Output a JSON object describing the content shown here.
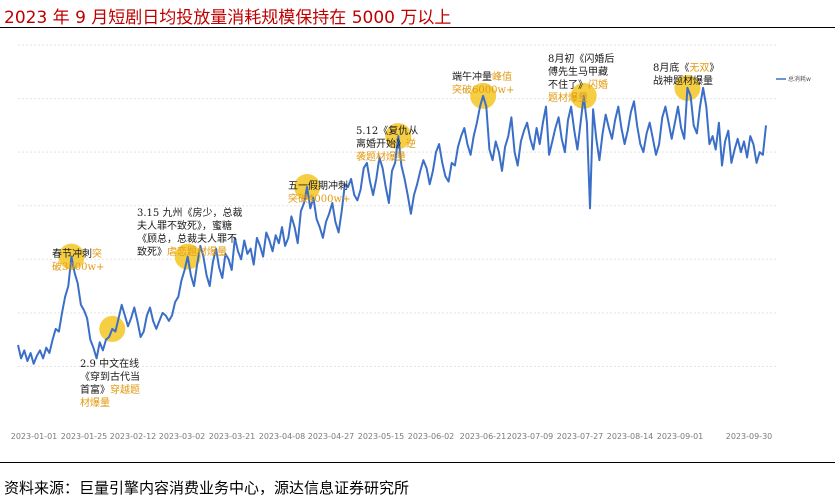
{
  "title": "2023 年 9 月短剧日均投放量消耗规模保持在 5000 万以上",
  "source": "资料来源：巨量引擎内容消费业务中心，源达信息证券研究所",
  "colors": {
    "title": "#c00000",
    "line": "#3b6fc7",
    "highlight": "#f3c623",
    "annotation": "#1a1a1a",
    "annotation_accent": "#e19a10"
  },
  "chart_data": {
    "type": "line",
    "legend": "总消耗w",
    "legend_position": "top-right",
    "grid": true,
    "ylim": [
      0,
      7000
    ],
    "x_ticks": [
      "2023-01-01",
      "2023-01-25",
      "2023-02-12",
      "2023-03-02",
      "2023-03-21",
      "2023-04-08",
      "2023-04-27",
      "2023-05-15",
      "2023-06-02",
      "2023-06-21",
      "2023-07-09",
      "2023-07-27",
      "2023-08-14",
      "2023-09-01",
      "2023-09-30"
    ],
    "series": [
      {
        "name": "总消耗w",
        "values": [
          1400,
          1150,
          1300,
          1100,
          1250,
          1050,
          1200,
          1300,
          1150,
          1350,
          1250,
          1500,
          1700,
          1650,
          2000,
          2300,
          2500,
          3050,
          2750,
          2550,
          2150,
          2050,
          1900,
          1500,
          1350,
          1150,
          1450,
          1300,
          1500,
          1550,
          1700,
          1650,
          1900,
          2150,
          1950,
          1750,
          1900,
          2100,
          1850,
          1550,
          1650,
          1950,
          2100,
          1850,
          1700,
          1850,
          2000,
          1950,
          1850,
          1950,
          2200,
          2300,
          2600,
          2800,
          3050,
          2700,
          2500,
          2900,
          3250,
          3050,
          2700,
          2500,
          2950,
          3200,
          2850,
          2650,
          3100,
          3000,
          2800,
          3400,
          3150,
          3000,
          3350,
          3100,
          3200,
          2900,
          3400,
          3250,
          3050,
          3500,
          3350,
          3150,
          3450,
          3300,
          3600,
          3250,
          3400,
          3800,
          3600,
          3300,
          3900,
          4050,
          4350,
          3950,
          4150,
          3750,
          3600,
          3400,
          3700,
          3850,
          4050,
          3700,
          3500,
          3900,
          4400,
          4350,
          4500,
          4200,
          4100,
          4300,
          4700,
          4800,
          4450,
          4200,
          4500,
          4900,
          4700,
          4350,
          4050,
          4650,
          4800,
          5300,
          4750,
          4500,
          4200,
          3850,
          4200,
          4400,
          4650,
          4850,
          4700,
          4400,
          4650,
          5000,
          5150,
          4800,
          4550,
          4450,
          4800,
          4750,
          5100,
          5300,
          5450,
          5150,
          4950,
          5300,
          5550,
          5850,
          6050,
          5850,
          5050,
          4850,
          5200,
          5000,
          4650,
          5100,
          5300,
          5650,
          5000,
          4750,
          5200,
          5400,
          5550,
          5250,
          5050,
          5450,
          5150,
          5550,
          5850,
          4950,
          5200,
          5450,
          5650,
          5250,
          5000,
          5600,
          5850,
          5400,
          5050,
          5550,
          6050,
          5550,
          3950,
          5800,
          5250,
          4850,
          5350,
          5700,
          5450,
          5250,
          5600,
          5850,
          5450,
          5150,
          5400,
          5750,
          5950,
          5500,
          5150,
          5000,
          5350,
          5550,
          5250,
          4950,
          5150,
          5650,
          5850,
          5550,
          5250,
          5550,
          5850,
          5450,
          5250,
          6200,
          6050,
          5500,
          5350,
          5850,
          6200,
          5850,
          5150,
          5300,
          5050,
          5550,
          4750,
          5200,
          5400,
          4800,
          5050,
          5250,
          5000,
          5200,
          4900,
          5300,
          5150,
          4800,
          5000,
          4950,
          5500
        ]
      }
    ],
    "highlights": [
      {
        "index": 17,
        "label": "春节冲刺突破3000w+"
      },
      {
        "index": 30,
        "label": "2.9 中文在线《穿到古代当首富》穿越题材爆量"
      },
      {
        "index": 54,
        "label": "3.15 九州《房少，总裁夫人罪不致死》，蜜糖《顾总，总裁夫人罪不致死》虐恋题材爆量"
      },
      {
        "index": 92,
        "label": "五一假期冲刺突破4000w+"
      },
      {
        "index": 121,
        "label": "5.12《复仇从离婚开始》逆袭题材爆量"
      },
      {
        "index": 148,
        "label": "端午冲量峰值突破6000w+"
      },
      {
        "index": 180,
        "label": "8月初《闪婚后傅先生马甲藏不住了》闪婚题材爆量"
      },
      {
        "index": 213,
        "label": "8月底《无双》战神题材爆量"
      }
    ]
  },
  "annotations": [
    {
      "x": 52,
      "y": 257,
      "lines": [
        [
          [
            "春节冲刺",
            "b"
          ],
          [
            "突",
            "o"
          ]
        ],
        [
          [
            "破3000w+",
            "o"
          ]
        ]
      ]
    },
    {
      "x": 80,
      "y": 367,
      "lines": [
        [
          [
            "2.9 中文在线",
            "b"
          ]
        ],
        [
          [
            "《穿到古代当",
            "b"
          ]
        ],
        [
          [
            "首富》",
            "b"
          ],
          [
            "穿越题",
            "o"
          ]
        ],
        [
          [
            "材爆量",
            "o"
          ]
        ]
      ]
    },
    {
      "x": 137,
      "y": 216,
      "lines": [
        [
          [
            "3.15 九州《房少，总裁",
            "b"
          ]
        ],
        [
          [
            "夫人罪不致死》，蜜糖",
            "b"
          ]
        ],
        [
          [
            "《顾总，总裁夫人罪不",
            "b"
          ]
        ],
        [
          [
            "致死》",
            "b"
          ],
          [
            "虐恋题材爆量",
            "o"
          ]
        ]
      ]
    },
    {
      "x": 288,
      "y": 189,
      "lines": [
        [
          [
            "五一假期冲刺",
            "b"
          ]
        ],
        [
          [
            "突破4000w+",
            "o"
          ]
        ]
      ]
    },
    {
      "x": 356,
      "y": 134,
      "lines": [
        [
          [
            "5.12《复仇从",
            "b"
          ]
        ],
        [
          [
            "离婚开始》",
            "b"
          ],
          [
            "逆",
            "o"
          ]
        ],
        [
          [
            "袭题材爆量",
            "o"
          ]
        ]
      ]
    },
    {
      "x": 452,
      "y": 80,
      "lines": [
        [
          [
            "端午冲量",
            "b"
          ],
          [
            "峰值",
            "o"
          ]
        ],
        [
          [
            "突破6000w+",
            "o"
          ]
        ]
      ]
    },
    {
      "x": 548,
      "y": 62,
      "lines": [
        [
          [
            "8月初《闪婚后",
            "b"
          ]
        ],
        [
          [
            "傅先生马甲藏",
            "b"
          ]
        ],
        [
          [
            "不住了》",
            "b"
          ],
          [
            "闪婚",
            "o"
          ]
        ],
        [
          [
            "题材爆量",
            "o"
          ]
        ]
      ]
    },
    {
      "x": 653,
      "y": 71,
      "lines": [
        [
          [
            "8月底《",
            "b"
          ],
          [
            "无双",
            "o"
          ],
          [
            "》",
            "b"
          ]
        ],
        [
          [
            "战神题材爆量",
            "b"
          ]
        ]
      ]
    }
  ]
}
